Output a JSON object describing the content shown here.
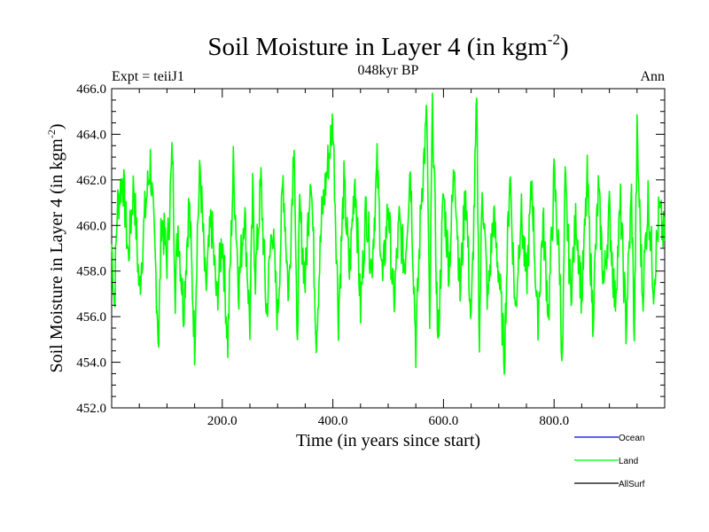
{
  "chart_data": {
    "type": "line",
    "title": "Soil Moisture in Layer 4 (in kgm",
    "title_sup": "-2",
    "title_close": ")",
    "subtitle_left": "Expt = teiiJ1",
    "subtitle_center": "048kyr BP",
    "subtitle_right": "Ann",
    "xlabel": "Time (in years since start)",
    "ylabel": "Soil Moisture in Layer 4 (in kgm",
    "ylabel_sup": "-2",
    "ylabel_close": ")",
    "xlim": [
      0,
      1000
    ],
    "ylim": [
      452.0,
      466.0
    ],
    "x_ticks": [
      200,
      400,
      600,
      800
    ],
    "x_tick_labels": [
      "200.0",
      "400.0",
      "600.0",
      "800.0"
    ],
    "y_ticks": [
      452,
      454,
      456,
      458,
      460,
      462,
      464,
      466
    ],
    "y_tick_labels": [
      "452.0",
      "454.0",
      "456.0",
      "458.0",
      "460.0",
      "462.0",
      "464.0",
      "466.0"
    ],
    "series": [
      {
        "name": "Ocean",
        "color": "#0000ff",
        "values": []
      },
      {
        "name": "Land",
        "color": "#00ff00",
        "mean": 459.2,
        "x": [
          0,
          5,
          10,
          20,
          30,
          40,
          50,
          60,
          70,
          80,
          85,
          90,
          100,
          110,
          115,
          120,
          130,
          140,
          150,
          155,
          160,
          170,
          180,
          190,
          200,
          210,
          220,
          230,
          240,
          250,
          255,
          260,
          270,
          280,
          290,
          300,
          310,
          320,
          330,
          335,
          340,
          350,
          360,
          370,
          380,
          400,
          410,
          420,
          430,
          440,
          450,
          460,
          470,
          480,
          490,
          500,
          510,
          520,
          530,
          540,
          550,
          560,
          570,
          575,
          580,
          590,
          600,
          610,
          620,
          630,
          640,
          650,
          660,
          665,
          670,
          680,
          690,
          700,
          710,
          720,
          730,
          740,
          750,
          760,
          770,
          780,
          790,
          800,
          810,
          815,
          820,
          830,
          840,
          850,
          860,
          870,
          880,
          890,
          900,
          910,
          920,
          930,
          940,
          945,
          950,
          960,
          970,
          980,
          990,
          999
        ],
        "values": [
          459.2,
          456.5,
          460.8,
          462.2,
          458.6,
          461.9,
          457.1,
          460.5,
          462.8,
          457.8,
          454.9,
          460.4,
          458.5,
          463.3,
          457.2,
          460.0,
          456.3,
          461.1,
          454.8,
          459.8,
          462.5,
          457.0,
          460.3,
          456.7,
          459.6,
          454.8,
          462.6,
          457.3,
          460.8,
          455.6,
          461.3,
          457.8,
          461.9,
          456.0,
          460.2,
          455.9,
          462.1,
          456.8,
          464.2,
          454.5,
          460.6,
          457.5,
          462.7,
          455.2,
          460.4,
          464.6,
          456.0,
          461.8,
          457.9,
          462.3,
          456.3,
          460.9,
          458.1,
          462.6,
          457.4,
          461.0,
          456.5,
          460.1,
          458.2,
          462.7,
          454.7,
          461.3,
          464.8,
          455.0,
          465.6,
          454.7,
          461.4,
          458.1,
          462.8,
          457.0,
          461.7,
          455.5,
          465.2,
          454.8,
          461.9,
          456.6,
          460.4,
          458.0,
          454.3,
          462.5,
          456.1,
          460.7,
          457.4,
          461.9,
          455.6,
          460.2,
          456.1,
          462.1,
          458.2,
          453.7,
          461.8,
          457.1,
          460.4,
          456.8,
          462.0,
          456.0,
          461.5,
          457.4,
          460.6,
          456.6,
          460.8,
          455.6,
          461.3,
          455.2,
          463.9,
          456.9,
          461.2,
          457.4,
          460.6,
          459.4
        ]
      },
      {
        "name": "AllSurf",
        "color": "#000000",
        "values": []
      }
    ],
    "grid": false,
    "legend_position": "bottom-right"
  }
}
